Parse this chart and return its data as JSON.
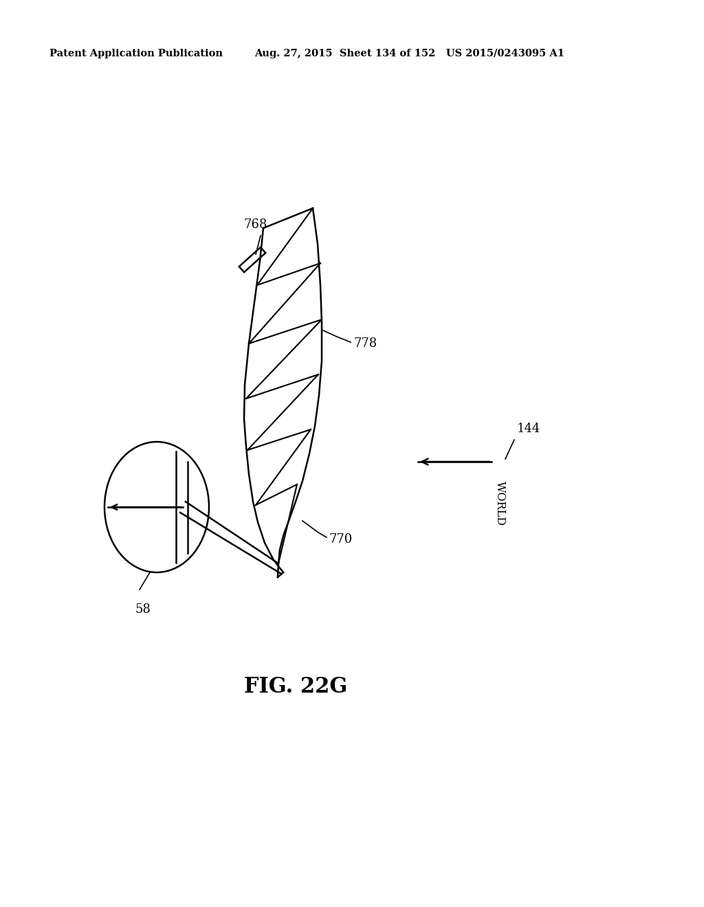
{
  "bg_color": "#ffffff",
  "line_color": "#000000",
  "header_left": "Patent Application Publication",
  "header_mid": "Aug. 27, 2015  Sheet 134 of 152   US 2015/0243095 A1",
  "fig_label": "FIG. 22G",
  "label_768": "768",
  "label_778": "778",
  "label_770": "770",
  "label_58": "58",
  "label_144": "144",
  "label_world": "WORLD"
}
